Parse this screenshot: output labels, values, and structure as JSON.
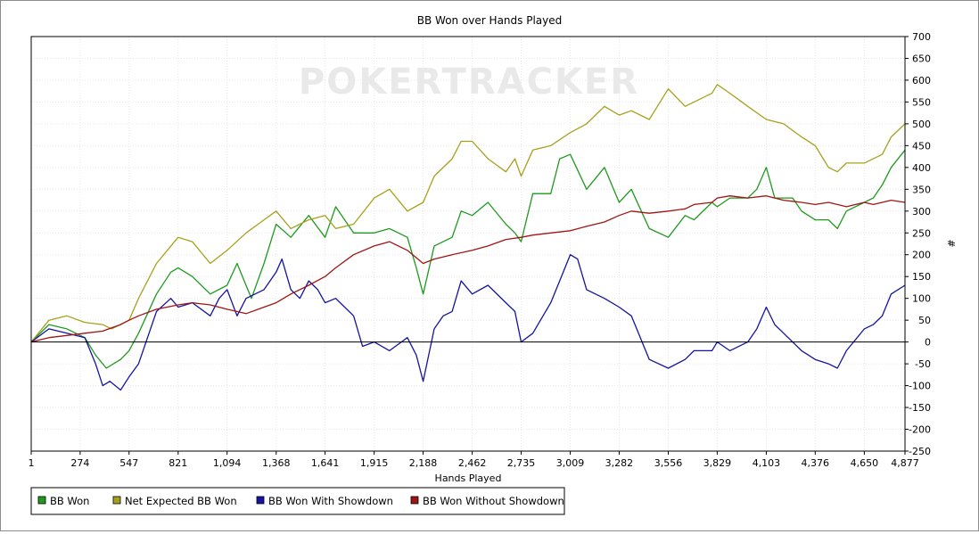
{
  "chart_data": {
    "type": "line",
    "title": "BB Won over Hands Played",
    "xlabel": "Hands Played",
    "ylabel": "#",
    "watermark": "POKERTRACKER",
    "x_ticks": [
      "1",
      "274",
      "547",
      "821",
      "1,094",
      "1,368",
      "1,641",
      "1,915",
      "2,188",
      "2,462",
      "2,735",
      "3,009",
      "3,282",
      "3,556",
      "3,829",
      "4,103",
      "4,376",
      "4,650",
      "4,877"
    ],
    "x_tick_values": [
      1,
      274,
      547,
      821,
      1094,
      1368,
      1641,
      1915,
      2188,
      2462,
      2735,
      3009,
      3282,
      3556,
      3829,
      4103,
      4376,
      4650,
      4877
    ],
    "xlim": [
      1,
      4877
    ],
    "ylim": [
      -250,
      700
    ],
    "y_ticks": [
      "-250",
      "-200",
      "-150",
      "-100",
      "-50",
      "0",
      "50",
      "100",
      "150",
      "200",
      "250",
      "300",
      "350",
      "400",
      "450",
      "500",
      "550",
      "600",
      "650",
      "700"
    ],
    "y_tick_values": [
      -250,
      -200,
      -150,
      -100,
      -50,
      0,
      50,
      100,
      150,
      200,
      250,
      300,
      350,
      400,
      450,
      500,
      550,
      600,
      650,
      700
    ],
    "grid": true,
    "legend_position": "bottom-left",
    "series": [
      {
        "name": "BB Won",
        "color": "#1e9a1e",
        "x": [
          1,
          100,
          200,
          300,
          360,
          420,
          500,
          547,
          600,
          700,
          780,
          821,
          900,
          1000,
          1094,
          1150,
          1230,
          1300,
          1368,
          1450,
          1550,
          1641,
          1700,
          1800,
          1915,
          2000,
          2100,
          2150,
          2188,
          2250,
          2350,
          2400,
          2462,
          2550,
          2650,
          2700,
          2735,
          2800,
          2900,
          2950,
          3009,
          3100,
          3200,
          3282,
          3350,
          3450,
          3556,
          3650,
          3700,
          3800,
          3829,
          3900,
          4000,
          4050,
          4103,
          4150,
          4250,
          4300,
          4376,
          4450,
          4500,
          4550,
          4650,
          4700,
          4750,
          4800,
          4877
        ],
        "y": [
          0,
          40,
          30,
          10,
          -30,
          -60,
          -40,
          -20,
          20,
          110,
          160,
          170,
          150,
          110,
          130,
          180,
          100,
          180,
          270,
          240,
          290,
          240,
          310,
          250,
          250,
          260,
          240,
          170,
          110,
          220,
          240,
          300,
          290,
          320,
          270,
          250,
          230,
          340,
          340,
          420,
          430,
          350,
          400,
          320,
          350,
          260,
          240,
          290,
          280,
          320,
          310,
          330,
          330,
          350,
          400,
          330,
          330,
          300,
          280,
          280,
          260,
          300,
          320,
          330,
          360,
          400,
          440
        ]
      },
      {
        "name": "Net Expected BB Won",
        "color": "#a8a01c",
        "x": [
          1,
          100,
          200,
          300,
          400,
          450,
          547,
          600,
          700,
          821,
          900,
          1000,
          1094,
          1200,
          1300,
          1368,
          1450,
          1550,
          1641,
          1700,
          1800,
          1915,
          2000,
          2100,
          2188,
          2250,
          2350,
          2400,
          2462,
          2550,
          2650,
          2700,
          2735,
          2800,
          2900,
          3009,
          3100,
          3200,
          3282,
          3350,
          3450,
          3556,
          3650,
          3700,
          3800,
          3829,
          3900,
          4000,
          4103,
          4200,
          4300,
          4376,
          4450,
          4500,
          4550,
          4650,
          4750,
          4800,
          4877
        ],
        "y": [
          0,
          50,
          60,
          45,
          40,
          30,
          50,
          100,
          180,
          240,
          230,
          180,
          210,
          250,
          280,
          300,
          260,
          280,
          290,
          260,
          270,
          330,
          350,
          300,
          320,
          380,
          420,
          460,
          460,
          420,
          390,
          420,
          380,
          440,
          450,
          480,
          500,
          540,
          520,
          530,
          510,
          580,
          540,
          550,
          570,
          590,
          570,
          540,
          510,
          500,
          470,
          450,
          400,
          390,
          410,
          410,
          430,
          470,
          500
        ]
      },
      {
        "name": "BB Won With Showdown",
        "color": "#1414a0",
        "x": [
          1,
          100,
          200,
          300,
          360,
          400,
          440,
          500,
          547,
          600,
          700,
          780,
          821,
          900,
          1000,
          1050,
          1094,
          1150,
          1200,
          1300,
          1368,
          1400,
          1450,
          1500,
          1550,
          1600,
          1641,
          1700,
          1800,
          1850,
          1915,
          2000,
          2100,
          2150,
          2188,
          2250,
          2300,
          2350,
          2400,
          2462,
          2550,
          2650,
          2700,
          2735,
          2800,
          2900,
          2950,
          3009,
          3050,
          3100,
          3200,
          3282,
          3350,
          3450,
          3556,
          3650,
          3700,
          3800,
          3829,
          3900,
          4000,
          4050,
          4103,
          4150,
          4200,
          4300,
          4376,
          4450,
          4500,
          4550,
          4650,
          4700,
          4750,
          4800,
          4877
        ],
        "y": [
          0,
          30,
          20,
          10,
          -50,
          -100,
          -90,
          -110,
          -80,
          -50,
          70,
          100,
          80,
          90,
          60,
          100,
          120,
          60,
          100,
          120,
          160,
          190,
          120,
          100,
          140,
          120,
          90,
          100,
          60,
          -10,
          0,
          -20,
          10,
          -30,
          -90,
          30,
          60,
          70,
          140,
          110,
          130,
          90,
          70,
          0,
          20,
          90,
          140,
          200,
          190,
          120,
          100,
          80,
          60,
          -40,
          -60,
          -40,
          -20,
          -20,
          0,
          -20,
          0,
          30,
          80,
          40,
          20,
          -20,
          -40,
          -50,
          -60,
          -20,
          30,
          40,
          60,
          110,
          130
        ]
      },
      {
        "name": "BB Won Without Showdown",
        "color": "#a01414",
        "x": [
          1,
          100,
          200,
          300,
          400,
          500,
          547,
          600,
          700,
          821,
          900,
          1000,
          1094,
          1200,
          1300,
          1368,
          1450,
          1550,
          1641,
          1700,
          1800,
          1915,
          2000,
          2100,
          2188,
          2250,
          2350,
          2462,
          2550,
          2650,
          2735,
          2800,
          2900,
          3009,
          3100,
          3200,
          3282,
          3350,
          3450,
          3556,
          3650,
          3700,
          3800,
          3829,
          3900,
          4000,
          4103,
          4200,
          4300,
          4376,
          4450,
          4500,
          4550,
          4650,
          4700,
          4750,
          4800,
          4877
        ],
        "y": [
          0,
          10,
          15,
          20,
          25,
          40,
          50,
          60,
          75,
          85,
          90,
          85,
          75,
          65,
          80,
          90,
          110,
          130,
          150,
          170,
          200,
          220,
          230,
          210,
          180,
          190,
          200,
          210,
          220,
          235,
          240,
          245,
          250,
          255,
          265,
          275,
          290,
          300,
          295,
          300,
          305,
          315,
          320,
          330,
          335,
          330,
          335,
          325,
          320,
          315,
          320,
          315,
          310,
          320,
          315,
          320,
          325,
          320
        ]
      }
    ]
  }
}
